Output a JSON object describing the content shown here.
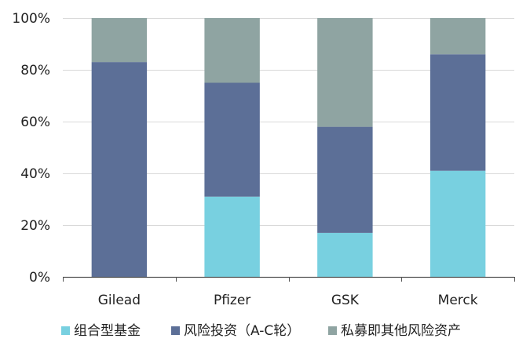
{
  "chart_data": {
    "type": "bar",
    "stacked": true,
    "categories": [
      "Gilead",
      "Pfizer",
      "GSK",
      "Merck"
    ],
    "series": [
      {
        "name": "组合型基金",
        "color": "#78d0e0",
        "values": [
          0,
          31,
          17,
          41
        ]
      },
      {
        "name": "风险投资（A-C轮）",
        "color": "#5c6f97",
        "values": [
          83,
          44,
          41,
          45
        ]
      },
      {
        "name": "私募即其他风险资产",
        "color": "#8fa4a2",
        "values": [
          17,
          25,
          42,
          14
        ]
      }
    ],
    "ylim": [
      0,
      100
    ],
    "yticks": [
      0,
      20,
      40,
      60,
      80,
      100
    ],
    "ytick_labels": [
      "0%",
      "20%",
      "40%",
      "60%",
      "80%",
      "100%"
    ],
    "grid": "horizontal",
    "legend_position": "bottom"
  }
}
